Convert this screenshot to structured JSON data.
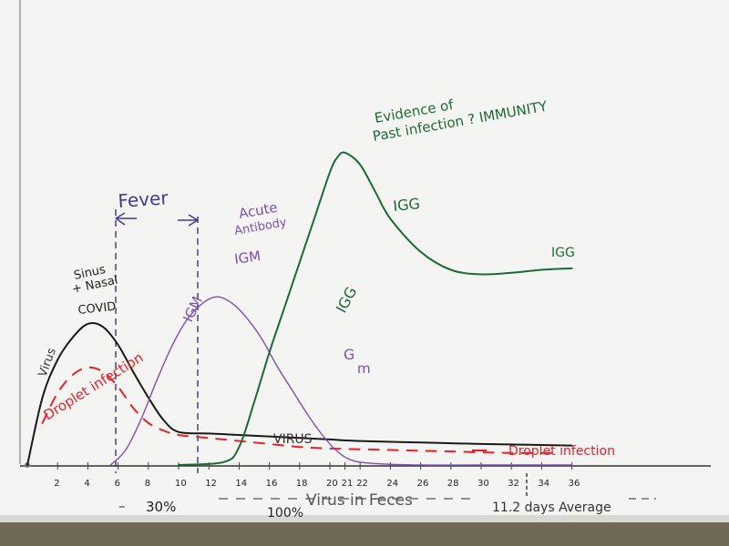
{
  "chart_data": {
    "type": "line",
    "x_ticks": [
      "2",
      "4",
      "6",
      "8",
      "10",
      "12",
      "14",
      "16",
      "18",
      "20",
      "21",
      "22",
      "24",
      "26",
      "28",
      "30",
      "32",
      "34",
      "36"
    ],
    "xlim": [
      0,
      36
    ],
    "series": [
      {
        "name": "Virus",
        "color": "#1a1a1a",
        "x": [
          0,
          1,
          2,
          3,
          4,
          5,
          6,
          7,
          8,
          9,
          10,
          12,
          14,
          16,
          18,
          20,
          22,
          26,
          30,
          36
        ],
        "y": [
          0,
          0.45,
          0.7,
          0.85,
          0.94,
          0.92,
          0.8,
          0.62,
          0.45,
          0.3,
          0.22,
          0.21,
          0.2,
          0.19,
          0.18,
          0.17,
          0.16,
          0.15,
          0.14,
          0.13
        ]
      },
      {
        "name": "Droplet infection",
        "color": "#e8202a",
        "dashed": true,
        "x": [
          1,
          2,
          3,
          4,
          5,
          6,
          7,
          8,
          9,
          10,
          12,
          14,
          16,
          18,
          20,
          24,
          28,
          32,
          35
        ],
        "y": [
          0.28,
          0.48,
          0.6,
          0.65,
          0.62,
          0.52,
          0.38,
          0.28,
          0.23,
          0.2,
          0.18,
          0.16,
          0.14,
          0.12,
          0.11,
          0.1,
          0.09,
          0.08,
          0.08
        ]
      },
      {
        "name": "IGM",
        "color": "#7c4fb5",
        "x": [
          5.5,
          6.5,
          7.5,
          8.5,
          9.5,
          10.5,
          11.5,
          12.5,
          13.5,
          14.5,
          15.5,
          16.5,
          17.5,
          18.5,
          19.5,
          20.5,
          21.5,
          23,
          26,
          30,
          36
        ],
        "y": [
          0,
          0.1,
          0.3,
          0.55,
          0.78,
          0.96,
          1.07,
          1.12,
          1.08,
          0.98,
          0.84,
          0.66,
          0.5,
          0.34,
          0.2,
          0.09,
          0.03,
          0.01,
          0,
          0,
          0
        ]
      },
      {
        "name": "IGG",
        "color": "#1c6a34",
        "x": [
          10,
          13,
          14,
          15,
          16,
          17,
          18,
          19,
          20,
          20.5,
          21,
          22,
          23,
          24,
          26,
          28,
          30,
          32,
          34,
          36
        ],
        "y": [
          0,
          0.02,
          0.12,
          0.42,
          0.75,
          1.05,
          1.35,
          1.65,
          1.95,
          2.05,
          2.08,
          2.0,
          1.82,
          1.64,
          1.42,
          1.3,
          1.27,
          1.28,
          1.3,
          1.31
        ]
      }
    ],
    "annotations": {
      "virus": "Virus",
      "sinus_1": "Sinus",
      "sinus_2": "+ Nasal",
      "covid": "COVID",
      "droplet_left": "Droplet infection",
      "fever": "Fever",
      "acute_1": "Acute",
      "acute_2": "Antibody",
      "igm_rising": "IGM",
      "igm_peak": "IGM",
      "igm_falling_1": "G",
      "igm_falling_2": "m",
      "igg_rising": "IGG",
      "igg_peak": "IGG",
      "igg_plateau": "IGG",
      "evidence_1": "Evidence of",
      "evidence_2": "Past infection ? IMMUNITY",
      "virus_flat": "VIRUS",
      "droplet_right": "Droplet infection",
      "bottom_30": "30%",
      "bottom_100": "100%",
      "bottom_feces": "Virus in Feces",
      "bottom_average": "11.2 days Average"
    }
  }
}
